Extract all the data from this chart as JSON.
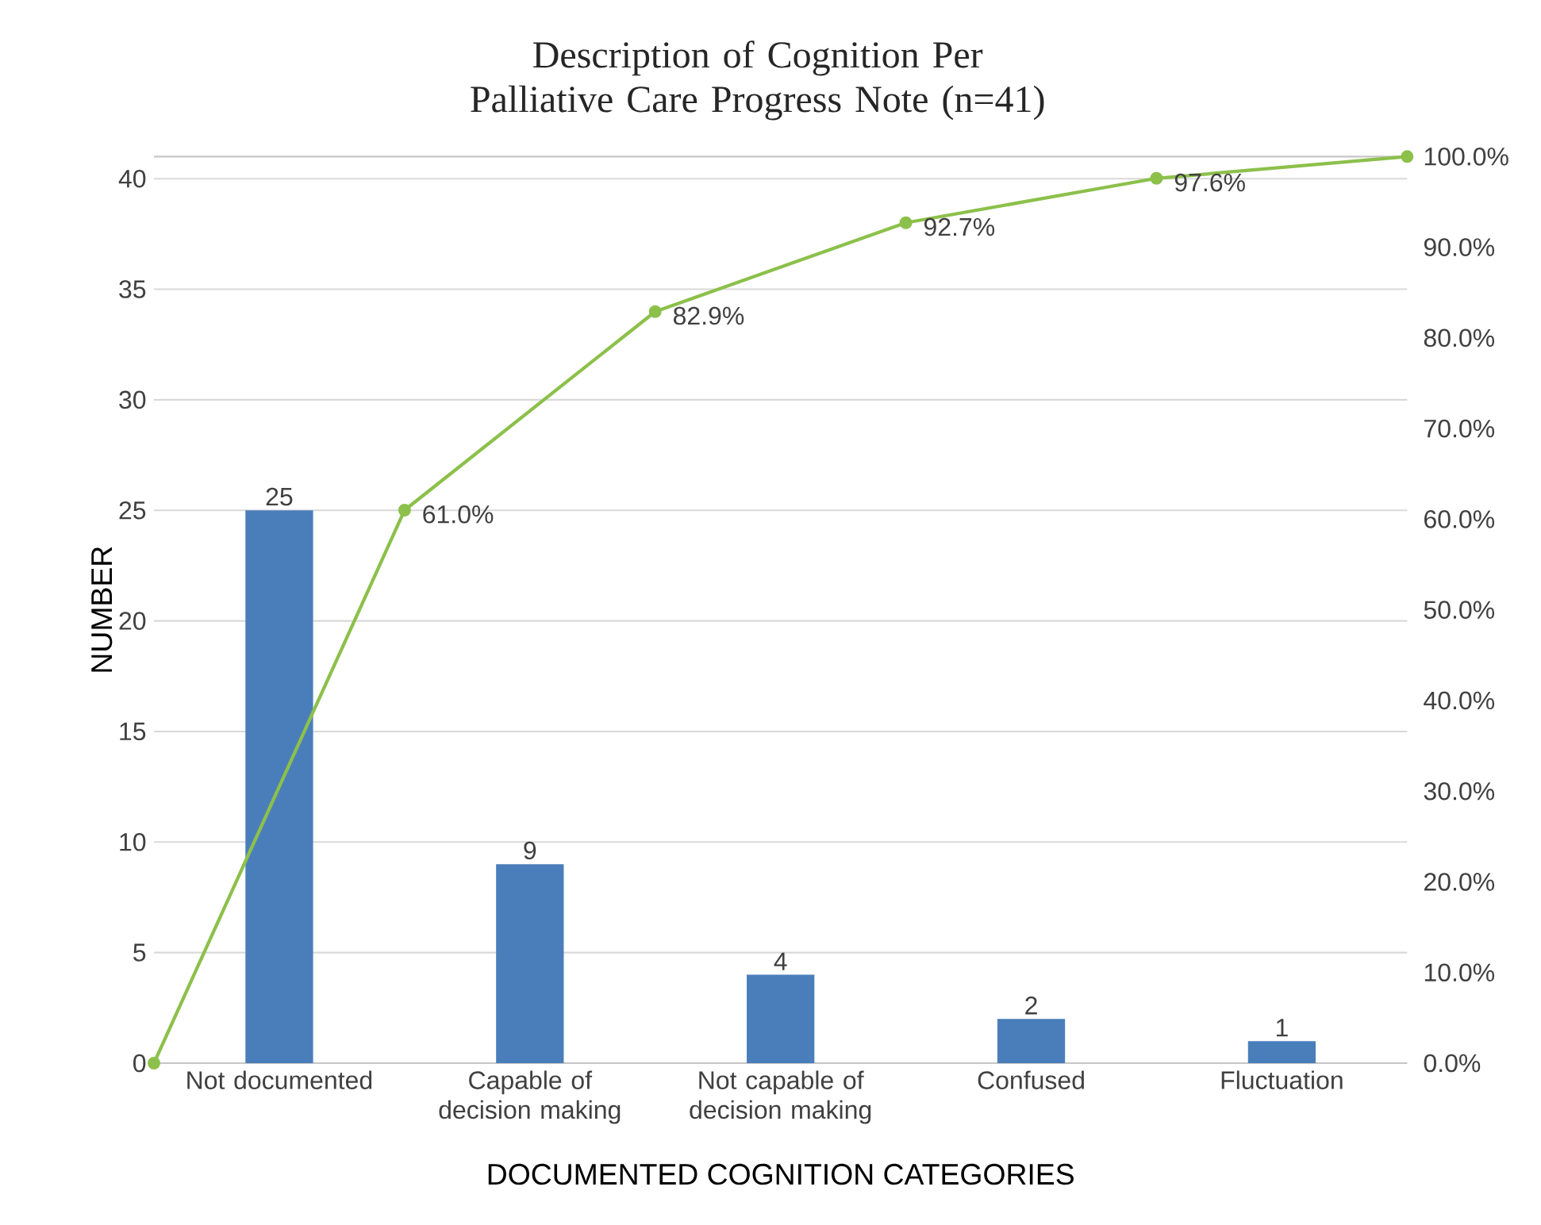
{
  "chart_data": {
    "type": "bar",
    "title": "Description of Cognition Per Palliative Care Progress Note  (n=41)",
    "xlabel": "DOCUMENTED COGNITION CATEGORIES",
    "ylabel": "NUMBER",
    "categories": [
      null,
      "Not documented",
      null,
      "Capable of decision making",
      null,
      "Not capable of decision making",
      null,
      "Confused",
      null,
      "Fluctuation",
      null
    ],
    "series": [
      {
        "color": "#4a7ebb",
        "values": [
          null,
          25,
          null,
          9,
          null,
          4,
          null,
          2,
          null,
          1,
          null
        ],
        "value_labels": [
          null,
          "25",
          null,
          "9",
          null,
          "4",
          null,
          "2",
          null,
          "1",
          null
        ]
      },
      {
        "type": "line",
        "axis": "y2",
        "color": "#8cc04b",
        "marker": "circle",
        "line_style": "solid",
        "values": [
          0,
          null,
          61.0,
          null,
          82.9,
          null,
          92.7,
          null,
          97.6,
          null,
          100
        ],
        "value_labels": [
          null,
          null,
          "61.0%",
          null,
          "82.9%",
          null,
          "92.7%",
          null,
          "97.6%",
          null,
          null
        ]
      }
    ],
    "ylim": [
      0,
      41
    ],
    "yticks": [
      0,
      5,
      10,
      15,
      20,
      25,
      30,
      35,
      40
    ],
    "y2lim": [
      0,
      100
    ],
    "y2ticks": [
      {
        "value": 0,
        "label": "0.0%"
      },
      {
        "value": 10,
        "label": "10.0%"
      },
      {
        "value": 20,
        "label": "20.0%"
      },
      {
        "value": 30,
        "label": "30.0%"
      },
      {
        "value": 40,
        "label": "40.0%"
      },
      {
        "value": 50,
        "label": "50.0%"
      },
      {
        "value": 60,
        "label": "60.0%"
      },
      {
        "value": 70,
        "label": "70.0%"
      },
      {
        "value": 80,
        "label": "80.0%"
      },
      {
        "value": 90,
        "label": "90.0%"
      },
      {
        "value": 100,
        "label": "100.0%"
      }
    ],
    "grid": "y"
  }
}
